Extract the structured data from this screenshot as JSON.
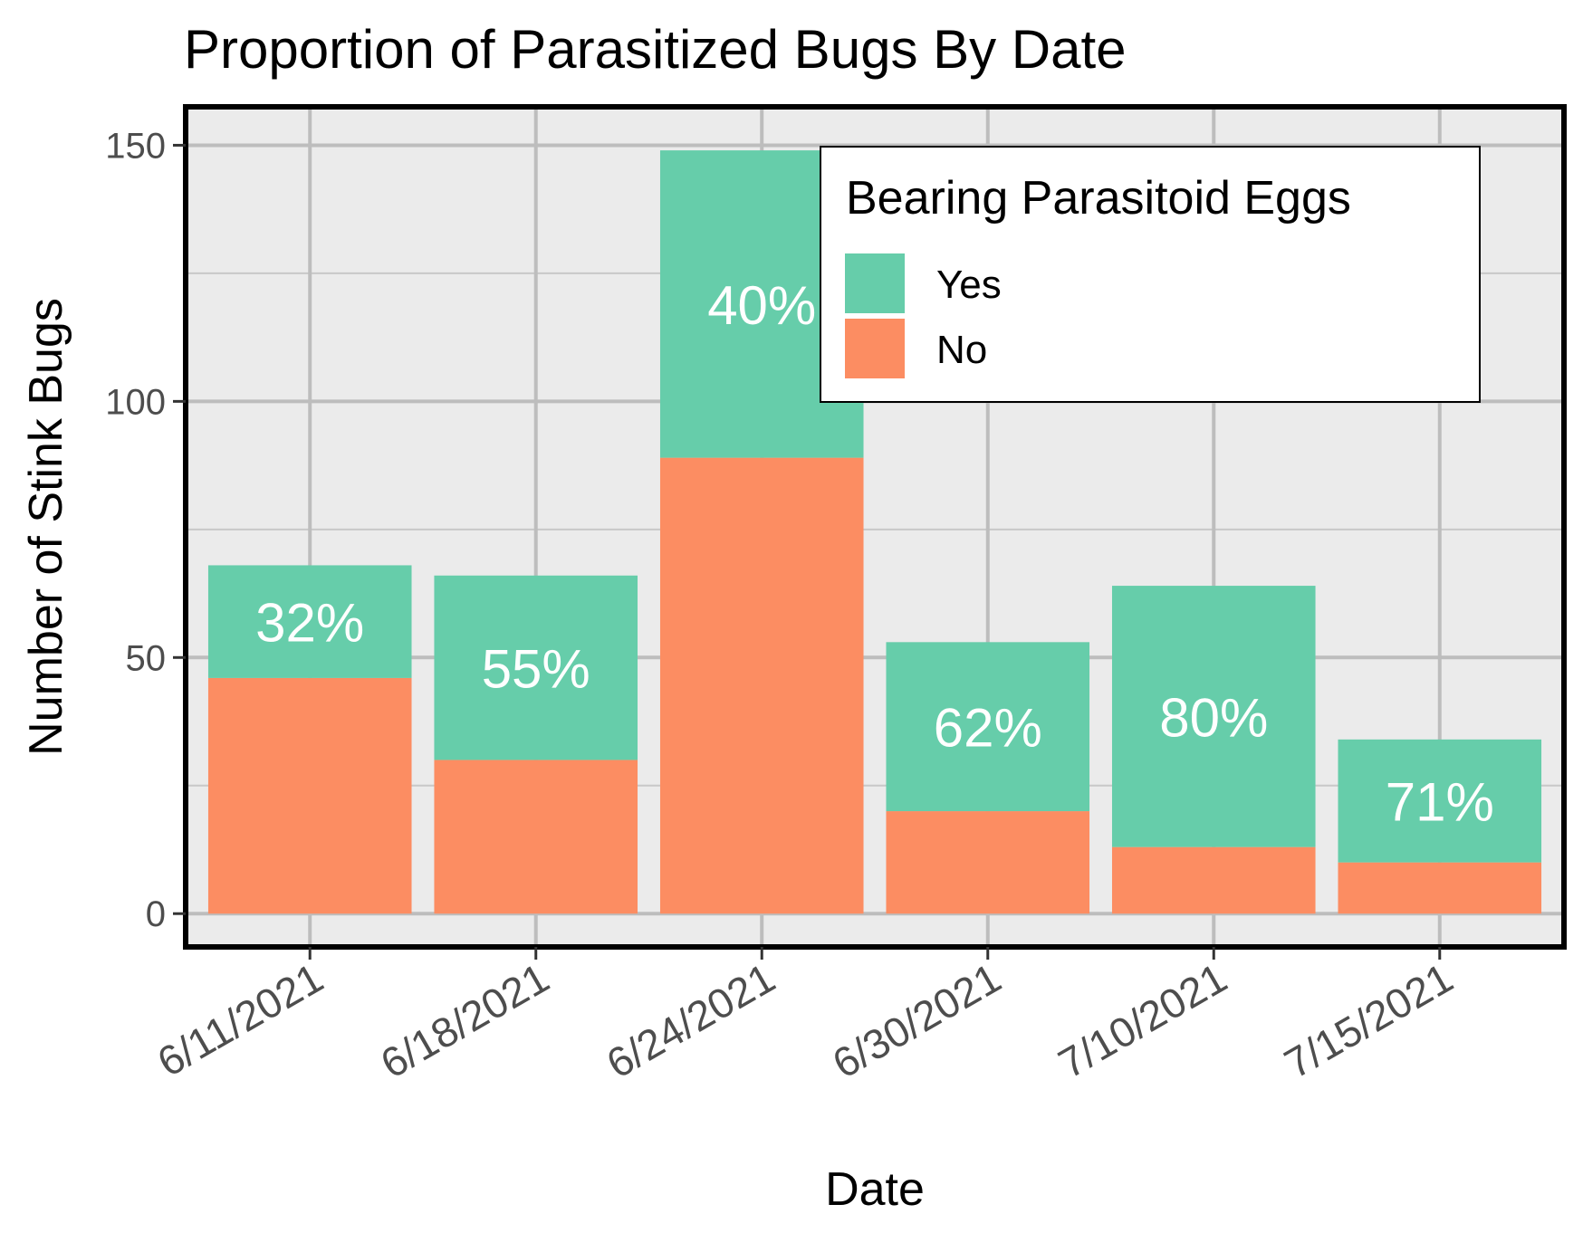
{
  "chart_data": {
    "type": "bar",
    "stacked": true,
    "title": "Proportion of Parasitized Bugs By Date",
    "xlabel": "Date",
    "ylabel": "Number of Stink Bugs",
    "categories": [
      "6/11/2021",
      "6/18/2021",
      "6/24/2021",
      "6/30/2021",
      "7/10/2021",
      "7/15/2021"
    ],
    "series": [
      {
        "name": "No",
        "color": "#FC8D62",
        "values": [
          46,
          30,
          89,
          20,
          13,
          10
        ]
      },
      {
        "name": "Yes",
        "color": "#66CDAA",
        "values": [
          22,
          36,
          60,
          33,
          51,
          24
        ]
      }
    ],
    "bar_labels": [
      "32%",
      "55%",
      "40%",
      "62%",
      "80%",
      "71%"
    ],
    "ylim": [
      -6.5,
      157.5
    ],
    "yticks": [
      0,
      50,
      100,
      150
    ],
    "y_minor_ticks": [
      25,
      75,
      125
    ],
    "grid": true,
    "legend": {
      "title": "Bearing Parasitoid Eggs",
      "entries": [
        {
          "label": "Yes",
          "color": "#66CDAA"
        },
        {
          "label": "No",
          "color": "#FC8D62"
        }
      ],
      "position": "top-right"
    }
  }
}
